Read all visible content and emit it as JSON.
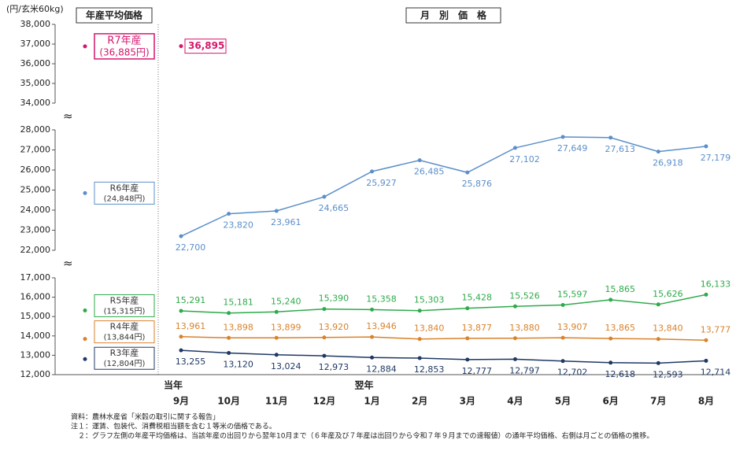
{
  "chart_data": {
    "type": "line",
    "y_unit_label": "(円/玄米60kg)",
    "left_panel_title": "年産平均価格",
    "right_panel_title": "月　別　価　格",
    "categories": [
      "9月",
      "10月",
      "11月",
      "12月",
      "1月",
      "2月",
      "3月",
      "4月",
      "5月",
      "6月",
      "7月",
      "8月"
    ],
    "x_group_labels": [
      "当年",
      null,
      null,
      null,
      "翌年",
      null,
      null,
      null,
      null,
      null,
      null,
      null
    ],
    "y_segments": [
      {
        "ylim": [
          34000,
          38000
        ],
        "yticks": [
          {
            "value": 34000,
            "label": "34,000"
          },
          {
            "value": 35000,
            "label": "35,000"
          },
          {
            "value": 36000,
            "label": "36,000"
          },
          {
            "value": 37000,
            "label": "37,000"
          },
          {
            "value": 38000,
            "label": "38,000"
          }
        ]
      },
      {
        "ylim": [
          22000,
          28000
        ],
        "yticks": [
          {
            "value": 22000,
            "label": "22,000"
          },
          {
            "value": 23000,
            "label": "23,000"
          },
          {
            "value": 24000,
            "label": "24,000"
          },
          {
            "value": 25000,
            "label": "25,000"
          },
          {
            "value": 26000,
            "label": "26,000"
          },
          {
            "value": 27000,
            "label": "27,000"
          },
          {
            "value": 28000,
            "label": "28,000"
          }
        ]
      },
      {
        "ylim": [
          12000,
          17000
        ],
        "yticks": [
          {
            "value": 12000,
            "label": "12,000"
          },
          {
            "value": 13000,
            "label": "13,000"
          },
          {
            "value": 14000,
            "label": "14,000"
          },
          {
            "value": 15000,
            "label": "15,000"
          },
          {
            "value": 16000,
            "label": "16,000"
          },
          {
            "value": 17000,
            "label": "17,000"
          }
        ]
      }
    ],
    "series": [
      {
        "name": "R7年産",
        "color": "#d6166d",
        "annual_value": 36885,
        "annual_label": "(36,885円)",
        "label_position": "right",
        "values": [
          36895,
          null,
          null,
          null,
          null,
          null,
          null,
          null,
          null,
          null,
          null,
          null
        ],
        "value_labels": [
          "36,895",
          null,
          null,
          null,
          null,
          null,
          null,
          null,
          null,
          null,
          null,
          null
        ]
      },
      {
        "name": "R6年産",
        "color": "#5b8fc9",
        "annual_value": 24848,
        "annual_label": "(24,848円)",
        "label_position": "below",
        "values": [
          22700,
          23820,
          23961,
          24665,
          25927,
          26485,
          25876,
          27102,
          27649,
          27613,
          26918,
          27179
        ],
        "value_labels": [
          "22,700",
          "23,820",
          "23,961",
          "24,665",
          "25,927",
          "26,485",
          "25,876",
          "27,102",
          "27,649",
          "27,613",
          "26,918",
          "27,179"
        ]
      },
      {
        "name": "R5年産",
        "color": "#2eaa4a",
        "annual_value": 15315,
        "annual_label": "(15,315円)",
        "label_position": "above",
        "values": [
          15291,
          15181,
          15240,
          15390,
          15358,
          15303,
          15428,
          15526,
          15597,
          15865,
          15626,
          16133
        ],
        "value_labels": [
          "15,291",
          "15,181",
          "15,240",
          "15,390",
          "15,358",
          "15,303",
          "15,428",
          "15,526",
          "15,597",
          "15,865",
          "15,626",
          "16,133"
        ]
      },
      {
        "name": "R4年産",
        "color": "#d9822b",
        "annual_value": 13844,
        "annual_label": "(13,844円)",
        "label_position": "above",
        "values": [
          13961,
          13898,
          13899,
          13920,
          13946,
          13840,
          13877,
          13880,
          13907,
          13865,
          13840,
          13777
        ],
        "value_labels": [
          "13,961",
          "13,898",
          "13,899",
          "13,920",
          "13,946",
          "13,840",
          "13,877",
          "13,880",
          "13,907",
          "13,865",
          "13,840",
          "13,777"
        ]
      },
      {
        "name": "R3年産",
        "color": "#1f3864",
        "annual_value": 12804,
        "annual_label": "(12,804円)",
        "label_position": "below",
        "values": [
          13255,
          13120,
          13024,
          12973,
          12884,
          12853,
          12777,
          12797,
          12702,
          12618,
          12593,
          12714
        ],
        "value_labels": [
          "13,255",
          "13,120",
          "13,024",
          "12,973",
          "12,884",
          "12,853",
          "12,777",
          "12,797",
          "12,702",
          "12,618",
          "12,593",
          "12,714"
        ]
      }
    ],
    "notes": [
      "資料：農林水産省「米穀の取引に関する報告」",
      "注１：運賃、包装代、消費税相当額を含む１等米の価格である。",
      "　２：グラフ左側の年産平均価格は、当該年産の出回りから翌年10月まで（６年産及び７年産は出回りから令和７年９月までの速報値）の通年平均価格、右側は月ごとの価格の推移。"
    ]
  }
}
